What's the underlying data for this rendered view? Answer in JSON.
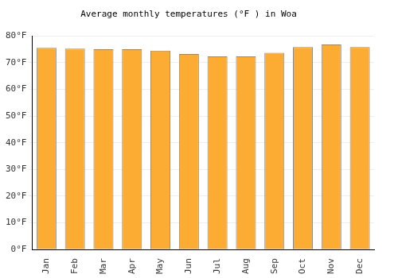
{
  "chart_data": {
    "type": "bar",
    "title": "Average monthly temperatures (°F ) in Woa",
    "categories": [
      "Jan",
      "Feb",
      "Mar",
      "Apr",
      "May",
      "Jun",
      "Jul",
      "Aug",
      "Sep",
      "Oct",
      "Nov",
      "Dec"
    ],
    "values": [
      75.5,
      75.2,
      75.0,
      75.0,
      74.5,
      73.2,
      72.3,
      72.3,
      73.7,
      75.8,
      76.8,
      75.8
    ],
    "color": "#fdac33",
    "ylim": [
      0,
      80
    ],
    "yticks": [
      {
        "value": 0,
        "label": "0°F"
      },
      {
        "value": 10,
        "label": "10°F"
      },
      {
        "value": 20,
        "label": "20°F"
      },
      {
        "value": 30,
        "label": "30°F"
      },
      {
        "value": 40,
        "label": "40°F"
      },
      {
        "value": 50,
        "label": "50°F"
      },
      {
        "value": 60,
        "label": "60°F"
      },
      {
        "value": 70,
        "label": "70°F"
      },
      {
        "value": 80,
        "label": "80°F"
      }
    ],
    "grid": true
  }
}
